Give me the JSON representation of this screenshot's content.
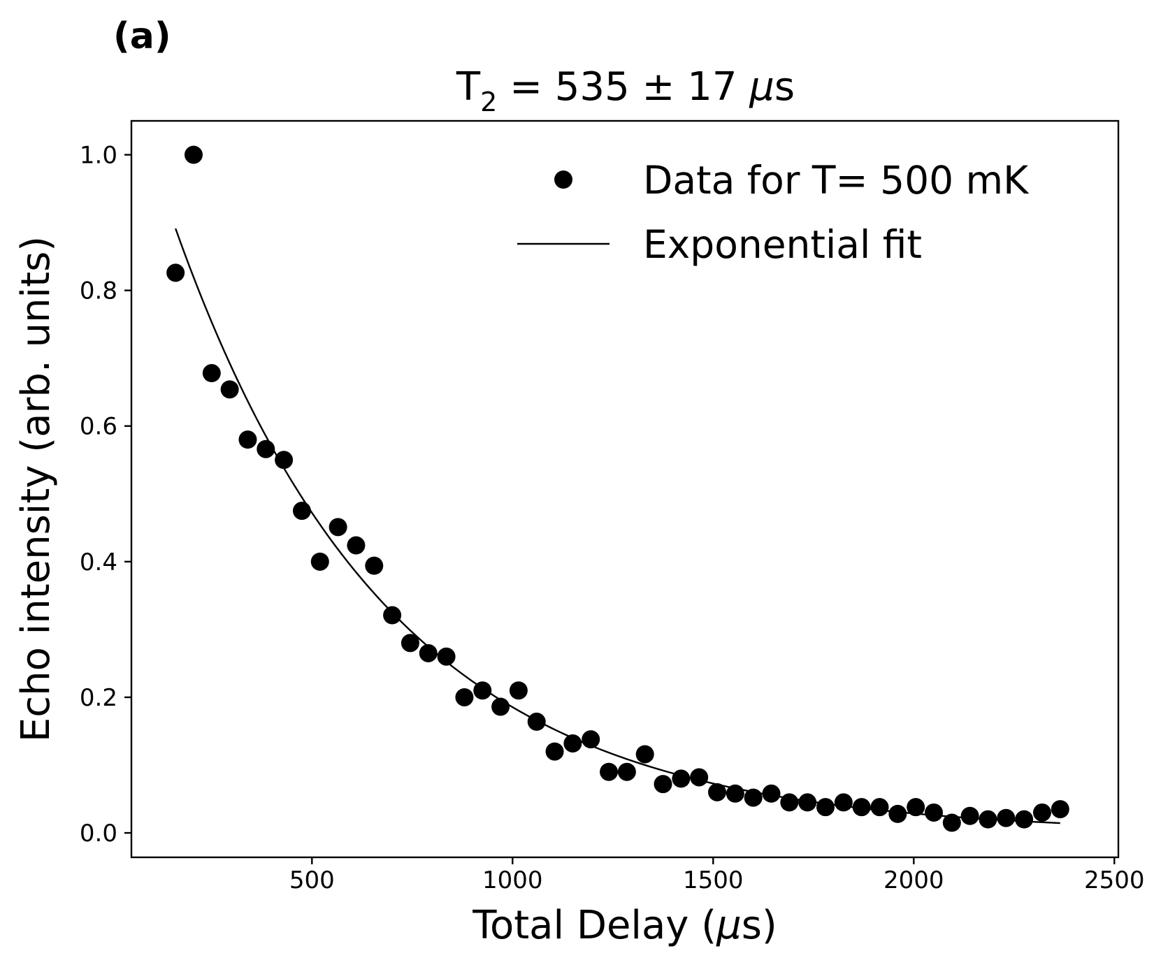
{
  "panel_label": "(a)",
  "chart_data": {
    "type": "scatter",
    "title": {
      "prefix": "T",
      "subscript": "2",
      "middle": " = 535 ± 17 ",
      "mu": "μ",
      "suffix": "s"
    },
    "xlabel": {
      "prefix": "Total Delay (",
      "mu": "μ",
      "suffix": "s)"
    },
    "ylabel": "Echo intensity (arb. units)",
    "xlim": [
      50,
      2510
    ],
    "ylim": [
      -0.036,
      1.05
    ],
    "xticks": [
      500,
      1000,
      1500,
      2000,
      2500
    ],
    "xtick_labels": [
      "500",
      "1000",
      "1500",
      "2000",
      "2500"
    ],
    "yticks": [
      0.0,
      0.2,
      0.4,
      0.6,
      0.8,
      1.0
    ],
    "ytick_labels": [
      "0.0",
      "0.2",
      "0.4",
      "0.6",
      "0.8",
      "1.0"
    ],
    "grid": false,
    "legend_position": "upper-right",
    "series": [
      {
        "name": "Data for T= 500 mK",
        "kind": "scatter",
        "color": "#000000",
        "x": [
          160,
          205,
          250,
          295,
          340,
          385,
          430,
          475,
          520,
          565,
          610,
          655,
          700,
          745,
          790,
          835,
          880,
          925,
          970,
          1015,
          1060,
          1105,
          1150,
          1195,
          1240,
          1285,
          1330,
          1375,
          1420,
          1465,
          1510,
          1555,
          1600,
          1645,
          1690,
          1735,
          1780,
          1825,
          1870,
          1915,
          1960,
          2005,
          2050,
          2095,
          2140,
          2185,
          2230,
          2275,
          2320,
          2365
        ],
        "y": [
          0.826,
          1.0,
          0.678,
          0.654,
          0.58,
          0.566,
          0.55,
          0.475,
          0.4,
          0.451,
          0.424,
          0.394,
          0.321,
          0.28,
          0.265,
          0.26,
          0.2,
          0.21,
          0.186,
          0.21,
          0.164,
          0.12,
          0.132,
          0.138,
          0.09,
          0.09,
          0.116,
          0.072,
          0.08,
          0.082,
          0.06,
          0.058,
          0.052,
          0.058,
          0.045,
          0.045,
          0.038,
          0.045,
          0.038,
          0.038,
          0.028,
          0.038,
          0.03,
          0.015,
          0.025,
          0.02,
          0.022,
          0.02,
          0.03,
          0.035
        ]
      },
      {
        "name": "Exponential fit",
        "kind": "line",
        "color": "#000000",
        "model": "y = A * exp(-x / T2)",
        "A": 1.202,
        "T2": 535,
        "x_range": [
          160,
          2365
        ]
      }
    ]
  }
}
